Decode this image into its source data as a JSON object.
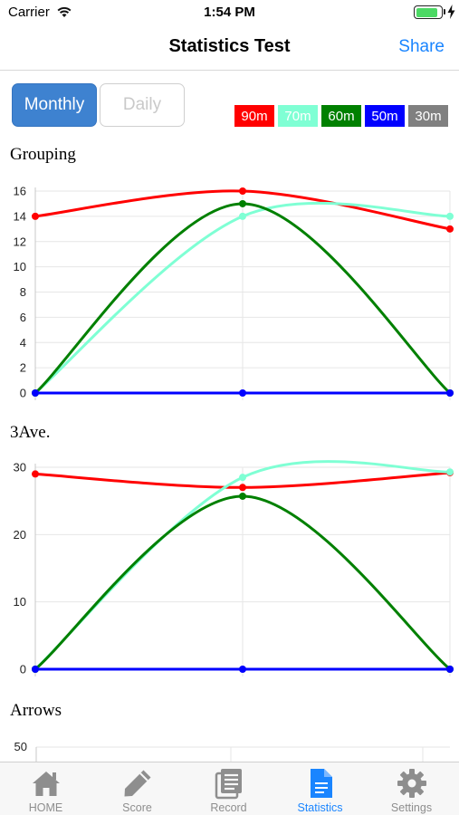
{
  "status_bar": {
    "carrier": "Carrier",
    "time": "1:54 PM",
    "battery_level": 0.9
  },
  "nav": {
    "title": "Statistics Test",
    "share_label": "Share"
  },
  "segmented": {
    "monthly_label": "Monthly",
    "daily_label": "Daily",
    "selected": "Monthly"
  },
  "legend": [
    {
      "label": "90m",
      "color": "#ff0000",
      "text_color": "#ffffff"
    },
    {
      "label": "70m",
      "color": "#7fffd4",
      "text_color": "#ffffff"
    },
    {
      "label": "60m",
      "color": "#008000",
      "text_color": "#ffffff"
    },
    {
      "label": "50m",
      "color": "#0000ff",
      "text_color": "#ffffff"
    },
    {
      "label": "30m",
      "color": "#808080",
      "text_color": "#ffffff"
    }
  ],
  "charts": {
    "grouping_title": "Grouping",
    "threeave_title": "3Ave.",
    "arrows_title": "Arrows",
    "arrows_tick": "50"
  },
  "chart_data": [
    {
      "type": "line",
      "title": "Grouping",
      "x": [
        1,
        2,
        3
      ],
      "ylim": [
        0,
        16
      ],
      "yticks": [
        0,
        2,
        4,
        6,
        8,
        10,
        12,
        14,
        16
      ],
      "grid": true,
      "series": [
        {
          "name": "90m",
          "color": "#ff0000",
          "values": [
            14,
            16,
            13
          ]
        },
        {
          "name": "70m",
          "color": "#7fffd4",
          "values": [
            0,
            14,
            14
          ]
        },
        {
          "name": "60m",
          "color": "#008000",
          "values": [
            0,
            15,
            0
          ]
        },
        {
          "name": "50m",
          "color": "#0000ff",
          "values": [
            0,
            0,
            0
          ]
        }
      ]
    },
    {
      "type": "line",
      "title": "3Ave.",
      "x": [
        1,
        2,
        3
      ],
      "ylim": [
        0,
        30
      ],
      "yticks": [
        0,
        10,
        20,
        30
      ],
      "grid": true,
      "series": [
        {
          "name": "90m",
          "color": "#ff0000",
          "values": [
            29,
            27,
            29.2
          ]
        },
        {
          "name": "70m",
          "color": "#7fffd4",
          "values": [
            0,
            28.5,
            29.3
          ]
        },
        {
          "name": "60m",
          "color": "#008000",
          "values": [
            0,
            25.7,
            0
          ]
        },
        {
          "name": "50m",
          "color": "#0000ff",
          "values": [
            0,
            0,
            0
          ]
        }
      ]
    },
    {
      "type": "line",
      "title": "Arrows",
      "yticks": [
        50
      ],
      "series": []
    }
  ],
  "tabs": [
    {
      "label": "HOME",
      "icon": "home-icon",
      "active": false
    },
    {
      "label": "Score",
      "icon": "pencil-icon",
      "active": false
    },
    {
      "label": "Record",
      "icon": "record-icon",
      "active": false
    },
    {
      "label": "Statistics",
      "icon": "document-icon",
      "active": true
    },
    {
      "label": "Settings",
      "icon": "gear-icon",
      "active": false
    }
  ]
}
